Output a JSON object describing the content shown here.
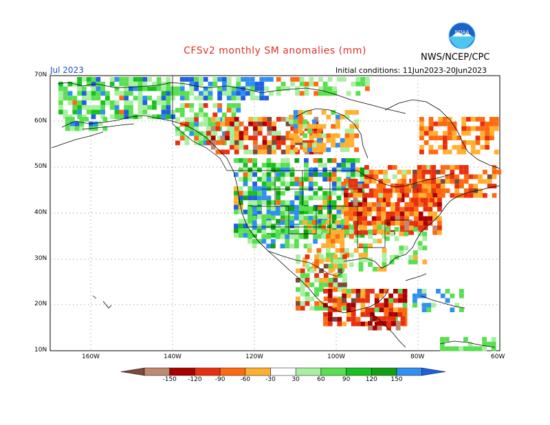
{
  "header": {
    "title": "CFSv2 monthly SM anomalies (mm)",
    "month": "Jul 2023",
    "initial_conditions": "Initial conditions: 11Jun2023-20Jun2023",
    "agency": "NWS/NCEP/CPC",
    "logo_text": "NOAA"
  },
  "axes": {
    "lat_labels": [
      "70N",
      "60N",
      "50N",
      "40N",
      "30N",
      "20N",
      "10N"
    ],
    "lon_labels": [
      "160W",
      "140W",
      "120W",
      "100W",
      "80W",
      "60W"
    ]
  },
  "legend": {
    "colors": [
      "#7a4a3a",
      "#c08870",
      "#a80000",
      "#e83010",
      "#ff6a10",
      "#ffb030",
      "#ffffff",
      "#a8f0a0",
      "#58e050",
      "#18c020",
      "#10a010",
      "#3090f0",
      "#2060e0"
    ],
    "tick_labels": [
      "-150",
      "-120",
      "-90",
      "-60",
      "-30",
      "30",
      "60",
      "90",
      "120",
      "150"
    ]
  },
  "map": {
    "region": "North America",
    "lon_range": [
      -170,
      -60
    ],
    "lat_range": [
      10,
      70
    ],
    "gridlines": true
  }
}
